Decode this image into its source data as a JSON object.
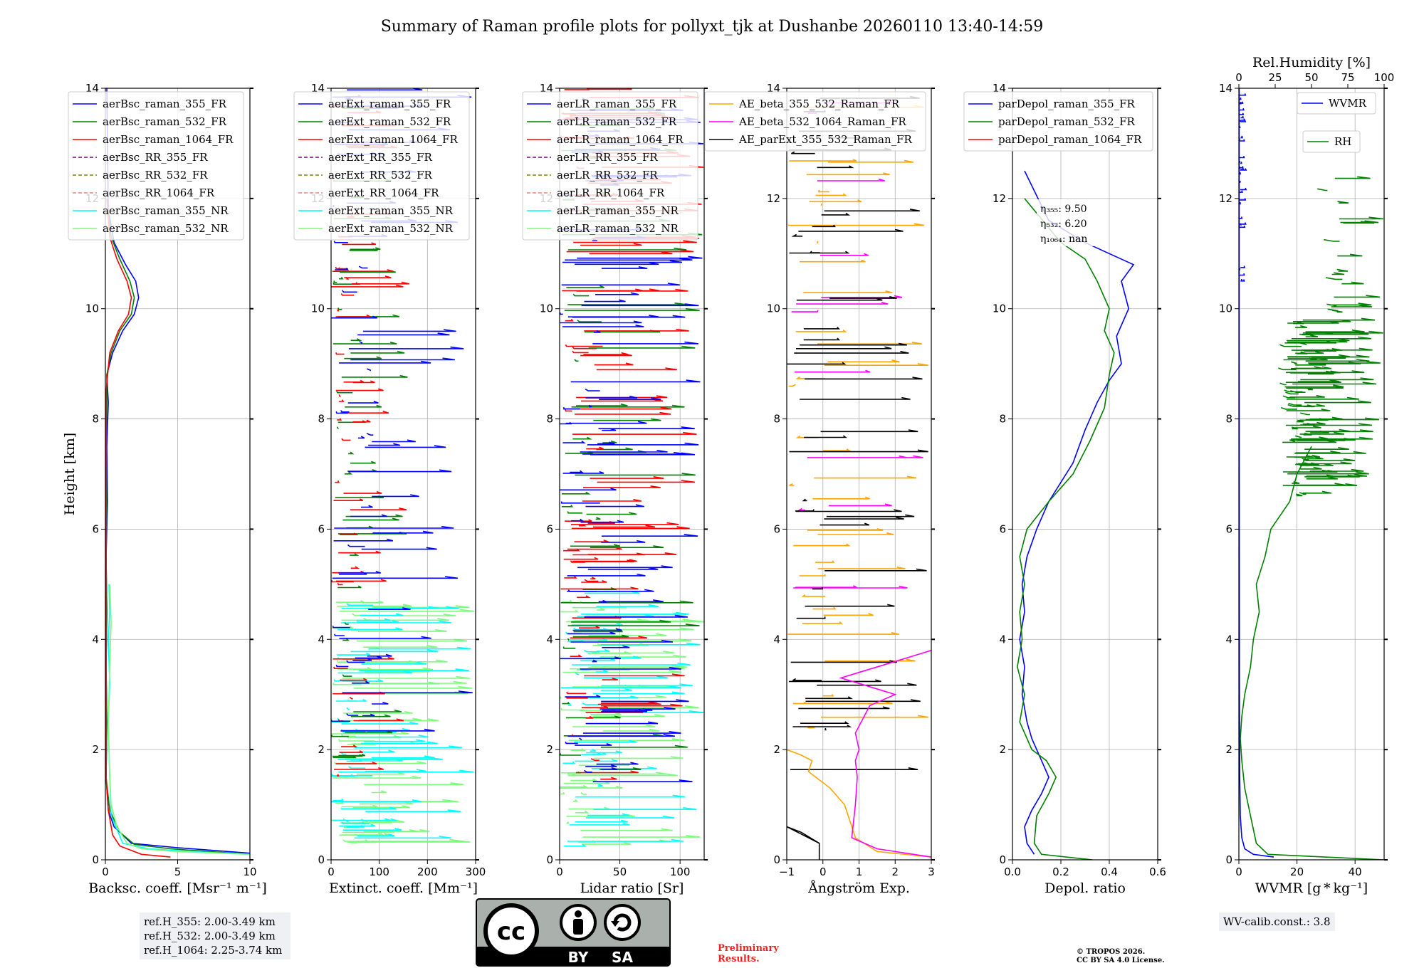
{
  "title": "Summary of Raman profile plots for pollyxt_tjk at Dushanbe 20260110 13:40-14:59",
  "colors": {
    "blue": "#0000ff",
    "green": "#008000",
    "red": "#ff0000",
    "purple": "#800080",
    "olive": "#808000",
    "salmon": "#fa8072",
    "cyan": "#00ffff",
    "lightgreen": "#7cfc7c",
    "orange": "#ffa500",
    "magenta": "#ff00ff",
    "black": "#000000"
  },
  "chart_data": [
    {
      "id": "bsc",
      "type": "line",
      "xlabel": "Backsc. coeff. [Msr$^{-1}$ m$^{-1}$]",
      "xlabel_text": "Backsc. coeff. [Msr⁻¹ m⁻¹]",
      "ylabel": "Height [km]",
      "xlim": [
        0,
        10
      ],
      "ylim": [
        0,
        14
      ],
      "xticks": [
        0,
        5,
        10
      ],
      "xtick_labels": [
        "0",
        "5",
        "10"
      ],
      "yticks": [
        0,
        2,
        4,
        6,
        8,
        10,
        12,
        14
      ],
      "ytick_labels": [
        "0",
        "2",
        "4",
        "6",
        "8",
        "10",
        "12",
        "14"
      ],
      "legend": [
        "aerBsc_raman_355_FR",
        "aerBsc_raman_532_FR",
        "aerBsc_raman_1064_FR",
        "aerBsc_RR_355_FR",
        "aerBsc_RR_532_FR",
        "aerBsc_RR_1064_FR",
        "aerBsc_raman_355_NR",
        "aerBsc_raman_532_NR"
      ],
      "legend_colors": [
        "#0000ff",
        "#008000",
        "#ff0000",
        "#800080",
        "#808000",
        "#fa8072",
        "#00ffff",
        "#7cfc7c"
      ],
      "legend_dashed": [
        false,
        false,
        false,
        true,
        true,
        true,
        false,
        false
      ],
      "series": [
        {
          "name": "aerBsc_raman_355_FR",
          "color": "#0000ff",
          "x": [
            10,
            5,
            1.8,
            0.6,
            0.2,
            0.05,
            0.1,
            0.05,
            0.1,
            0.05,
            0.15,
            0.1,
            0.2,
            0.1,
            0.5,
            1.2,
            2.0,
            2.3,
            2.1,
            1.4,
            0.6,
            0.2,
            0.1
          ],
          "y": [
            0.12,
            0.22,
            0.3,
            0.6,
            0.9,
            1.5,
            2.5,
            3.5,
            4.5,
            5.5,
            6.5,
            7.5,
            8.3,
            8.8,
            9.2,
            9.6,
            9.9,
            10.2,
            10.5,
            10.8,
            11.2,
            11.8,
            14
          ]
        },
        {
          "name": "aerBsc_raman_532_FR",
          "color": "#008000",
          "x": [
            10,
            4.5,
            2,
            1.0,
            0.3,
            0.05,
            0.1,
            0.05,
            0.1,
            0.05,
            0.1,
            0.05,
            0.1,
            0.1,
            0.4,
            1.0,
            1.8,
            2.0,
            1.7,
            1.0,
            0.4,
            0.1
          ],
          "y": [
            0.1,
            0.2,
            0.28,
            0.5,
            0.9,
            1.5,
            2.5,
            3.5,
            4.5,
            5.5,
            6.5,
            7.5,
            8.3,
            8.8,
            9.2,
            9.6,
            9.9,
            10.2,
            10.5,
            10.9,
            11.3,
            12
          ]
        },
        {
          "name": "aerBsc_raman_1064_FR",
          "color": "#ff0000",
          "x": [
            4.5,
            2.5,
            1.0,
            0.5,
            0.2,
            0.05,
            0.05,
            0.05,
            0.3,
            0.9,
            1.6,
            1.8,
            1.5,
            0.8,
            0.3,
            0.1
          ],
          "y": [
            0.05,
            0.1,
            0.25,
            0.45,
            0.9,
            1.5,
            4,
            8.5,
            9.2,
            9.6,
            9.9,
            10.2,
            10.5,
            10.9,
            11.3,
            12
          ]
        },
        {
          "name": "aerBsc_raman_355_NR",
          "color": "#00ffff",
          "x": [
            10,
            6,
            3,
            1.2,
            0.4,
            0.3,
            0.2,
            0.3,
            0.2,
            0.3,
            0.25
          ],
          "y": [
            0.1,
            0.15,
            0.2,
            0.3,
            0.8,
            1.5,
            2.5,
            3.2,
            4,
            4.5,
            5
          ]
        },
        {
          "name": "aerBsc_raman_532_NR",
          "color": "#7cfc7c",
          "x": [
            10,
            5,
            2.5,
            1.5,
            0.8,
            0.4,
            0.3,
            0.2,
            0.3,
            0.4,
            0.3
          ],
          "y": [
            0.1,
            0.15,
            0.2,
            0.3,
            0.6,
            1.0,
            1.5,
            2.5,
            3.5,
            4.3,
            5
          ]
        }
      ]
    },
    {
      "id": "ext",
      "type": "line",
      "xlabel_text": "Extinct. coeff. [Mm⁻¹]",
      "xlim": [
        0,
        300
      ],
      "ylim": [
        0,
        14
      ],
      "xticks": [
        0,
        100,
        200,
        300
      ],
      "xtick_labels": [
        "0",
        "100",
        "200",
        "300"
      ],
      "yticks": [
        0,
        2,
        4,
        6,
        8,
        10,
        12,
        14
      ],
      "ytick_labels": [
        "0",
        "2",
        "4",
        "6",
        "8",
        "10",
        "12",
        "14"
      ],
      "legend": [
        "aerExt_raman_355_FR",
        "aerExt_raman_532_FR",
        "aerExt_raman_1064_FR",
        "aerExt_RR_355_FR",
        "aerExt_RR_532_FR",
        "aerExt_RR_1064_FR",
        "aerExt_raman_355_NR",
        "aerExt_raman_532_NR"
      ],
      "legend_colors": [
        "#0000ff",
        "#008000",
        "#ff0000",
        "#800080",
        "#808000",
        "#fa8072",
        "#00ffff",
        "#7cfc7c"
      ],
      "legend_dashed": [
        false,
        false,
        false,
        true,
        true,
        true,
        false,
        false
      ],
      "noisy": [
        {
          "name": "aerExt_raman_532_NR",
          "color": "#7cfc7c",
          "ymin": 0.2,
          "ymax": 4.9,
          "xmin": 0,
          "xmax": 300,
          "n": 70,
          "seed": 3
        },
        {
          "name": "aerExt_raman_355_NR",
          "color": "#00ffff",
          "ymin": 0.3,
          "ymax": 4.9,
          "xmin": 0,
          "xmax": 300,
          "n": 55,
          "seed": 7
        },
        {
          "name": "aerExt_raman_532_FR",
          "color": "#008000",
          "ymin": 1.4,
          "ymax": 14,
          "xmin": 0,
          "xmax": 160,
          "n": 45,
          "seed": 11
        },
        {
          "name": "aerExt_raman_1064_FR",
          "color": "#ff0000",
          "ymin": 1.4,
          "ymax": 14,
          "xmin": 0,
          "xmax": 170,
          "n": 55,
          "seed": 13
        },
        {
          "name": "aerExt_raman_355_FR",
          "color": "#0000ff",
          "ymin": 1.3,
          "ymax": 14,
          "xmin": 0,
          "xmax": 300,
          "n": 65,
          "seed": 17
        }
      ]
    },
    {
      "id": "lr",
      "type": "line",
      "xlabel_text": "Lidar ratio [Sr]",
      "xlim": [
        0,
        120
      ],
      "ylim": [
        0,
        14
      ],
      "xticks": [
        0,
        50,
        100
      ],
      "xtick_labels": [
        "0",
        "50",
        "100"
      ],
      "yticks": [
        0,
        2,
        4,
        6,
        8,
        10,
        12,
        14
      ],
      "ytick_labels": [
        "0",
        "2",
        "4",
        "6",
        "8",
        "10",
        "12",
        "14"
      ],
      "legend": [
        "aerLR_raman_355_FR",
        "aerLR_raman_532_FR",
        "aerLR_raman_1064_FR",
        "aerLR_RR_355_FR",
        "aerLR_RR_532_FR",
        "aerLR_RR_1064_FR",
        "aerLR_raman_355_NR",
        "aerLR_raman_532_NR"
      ],
      "legend_colors": [
        "#0000ff",
        "#008000",
        "#ff0000",
        "#800080",
        "#808000",
        "#fa8072",
        "#00ffff",
        "#7cfc7c"
      ],
      "legend_dashed": [
        false,
        false,
        false,
        true,
        true,
        true,
        false,
        false
      ],
      "noisy": [
        {
          "name": "aerLR_raman_532_NR",
          "color": "#7cfc7c",
          "ymin": 0.2,
          "ymax": 4.9,
          "xmin": 0,
          "xmax": 120,
          "n": 60,
          "seed": 21
        },
        {
          "name": "aerLR_raman_355_NR",
          "color": "#00ffff",
          "ymin": 0.2,
          "ymax": 4.9,
          "xmin": 0,
          "xmax": 120,
          "n": 45,
          "seed": 23
        },
        {
          "name": "aerLR_raman_532_FR",
          "color": "#008000",
          "ymin": 1.4,
          "ymax": 14,
          "xmin": 0,
          "xmax": 120,
          "n": 50,
          "seed": 25
        },
        {
          "name": "aerLR_raman_1064_FR",
          "color": "#ff0000",
          "ymin": 1.4,
          "ymax": 14,
          "xmin": 0,
          "xmax": 120,
          "n": 90,
          "seed": 27
        },
        {
          "name": "aerLR_raman_355_FR",
          "color": "#0000ff",
          "ymin": 1.4,
          "ymax": 14,
          "xmin": 0,
          "xmax": 120,
          "n": 90,
          "seed": 29
        }
      ]
    },
    {
      "id": "ae",
      "type": "line",
      "xlabel_text": "Ångström Exp.",
      "xlim": [
        -1,
        3
      ],
      "ylim": [
        0,
        14
      ],
      "xticks": [
        -1,
        0,
        1,
        2,
        3
      ],
      "xtick_labels": [
        "−1",
        "0",
        "1",
        "2",
        "3"
      ],
      "yticks": [
        0,
        2,
        4,
        6,
        8,
        10,
        12,
        14
      ],
      "ytick_labels": [
        "0",
        "2",
        "4",
        "6",
        "8",
        "10",
        "12",
        "14"
      ],
      "legend": [
        "AE_beta_355_532_Raman_FR",
        "AE_beta_532_1064_Raman_FR",
        "AE_parExt_355_532_Raman_FR"
      ],
      "legend_colors": [
        "#ffa500",
        "#ff00ff",
        "#000000"
      ],
      "legend_dashed": [
        false,
        false,
        false
      ],
      "series": [
        {
          "name": "AE_beta_355_532_Raman_FR",
          "color": "#ffa500",
          "x": [
            3,
            1.5,
            0.9,
            0.6,
            0.2,
            -0.4,
            -0.3,
            -0.6,
            -1
          ],
          "y": [
            0.05,
            0.15,
            0.4,
            1.0,
            1.3,
            1.6,
            1.8,
            1.9,
            2.0
          ]
        },
        {
          "name": "AE_beta_532_1064_Raman_FR",
          "color": "#ff00ff",
          "x": [
            3,
            1.5,
            0.8,
            0.9,
            0.95,
            0.9,
            1.0,
            0.9,
            1.3,
            2.0,
            1.0,
            0.5,
            1.0,
            2.0,
            3.0
          ],
          "y": [
            0.05,
            0.2,
            0.4,
            1.0,
            1.5,
            1.8,
            2.0,
            2.3,
            2.8,
            3.0,
            3.2,
            3.3,
            3.4,
            3.6,
            3.8
          ]
        },
        {
          "name": "AE_parExt_355_532_Raman_FR",
          "color": "#000000",
          "x": [
            -0.1,
            -0.1,
            -1,
            -0.6,
            -0.1
          ],
          "y": [
            0,
            0.3,
            0.6,
            0.5,
            0.3
          ]
        }
      ],
      "noisy": [
        {
          "name": "AE_beta_355_532_Raman_FR",
          "color": "#ffa500",
          "ymin": 2.3,
          "ymax": 14,
          "xmin": -1,
          "xmax": 3,
          "n": 40,
          "seed": 31
        },
        {
          "name": "AE_beta_532_1064_Raman_FR",
          "color": "#ff00ff",
          "ymin": 4.5,
          "ymax": 14,
          "xmin": -1,
          "xmax": 3,
          "n": 14,
          "seed": 33
        },
        {
          "name": "AE_parExt_355_532_Raman_FR",
          "color": "#000000",
          "ymin": 1.4,
          "ymax": 14,
          "xmin": -1,
          "xmax": 3,
          "n": 48,
          "seed": 35
        }
      ]
    },
    {
      "id": "depol",
      "type": "line",
      "xlabel_text": "Depol. ratio",
      "xlim": [
        0,
        0.6
      ],
      "ylim": [
        0,
        14
      ],
      "xticks": [
        0,
        0.2,
        0.4,
        0.6
      ],
      "xtick_labels": [
        "0.0",
        "0.2",
        "0.4",
        "0.6"
      ],
      "yticks": [
        0,
        2,
        4,
        6,
        8,
        10,
        12,
        14
      ],
      "ytick_labels": [
        "0",
        "2",
        "4",
        "6",
        "8",
        "10",
        "12",
        "14"
      ],
      "legend": [
        "parDepol_raman_355_FR",
        "parDepol_raman_532_FR",
        "parDepol_raman_1064_FR"
      ],
      "legend_colors": [
        "#0000ff",
        "#008000",
        "#ff0000"
      ],
      "legend_dashed": [
        false,
        false,
        false
      ],
      "annotation": [
        "η₃₅₅: 9.50",
        "η₅₃₂: 6.20",
        "η₁₀₆₄: nan"
      ],
      "series": [
        {
          "name": "parDepol_raman_355_FR",
          "color": "#0000ff",
          "x": [
            0.09,
            0.06,
            0.05,
            0.08,
            0.12,
            0.15,
            0.12,
            0.1,
            0.08,
            0.06,
            0.04,
            0.05,
            0.03,
            0.05,
            0.04,
            0.06,
            0.1,
            0.15,
            0.25,
            0.3,
            0.35,
            0.4,
            0.45,
            0.43,
            0.48,
            0.45,
            0.5,
            0.4,
            0.3,
            0.15,
            0.05
          ],
          "y": [
            0.1,
            0.3,
            0.6,
            0.9,
            1.2,
            1.5,
            1.8,
            2.0,
            2.2,
            2.5,
            3.0,
            3.5,
            4.0,
            4.5,
            5.0,
            5.5,
            6.0,
            6.5,
            7.2,
            7.8,
            8.3,
            8.7,
            9.0,
            9.5,
            10.0,
            10.5,
            10.8,
            11.0,
            11.2,
            11.6,
            12.5
          ]
        },
        {
          "name": "parDepol_raman_532_FR",
          "color": "#008000",
          "x": [
            0.33,
            0.12,
            0.09,
            0.1,
            0.15,
            0.18,
            0.14,
            0.08,
            0.03,
            0.05,
            0.02,
            0.04,
            0.03,
            0.05,
            0.03,
            0.06,
            0.15,
            0.25,
            0.32,
            0.38,
            0.4,
            0.42,
            0.38,
            0.4,
            0.35,
            0.3,
            0.2,
            0.05
          ],
          "y": [
            0,
            0.1,
            0.3,
            0.8,
            1.2,
            1.5,
            1.8,
            2.0,
            2.5,
            3.0,
            3.5,
            4.0,
            4.5,
            5.0,
            5.5,
            6.0,
            6.5,
            7.0,
            7.6,
            8.2,
            8.8,
            9.2,
            9.6,
            10.0,
            10.5,
            10.9,
            11.2,
            12
          ]
        }
      ]
    },
    {
      "id": "wv",
      "type": "line",
      "xlabel_text": "WVMR [g * kg⁻¹]",
      "xlim": [
        0,
        50
      ],
      "ylim": [
        0,
        14
      ],
      "xticks": [
        0,
        20,
        40
      ],
      "xtick_labels": [
        "0",
        "20",
        "40"
      ],
      "top_xlabel": "Rel.Humidity [%]",
      "top_xlim": [
        0,
        100
      ],
      "top_xticks": [
        0,
        25,
        50,
        75,
        100
      ],
      "top_xtick_labels": [
        "0",
        "25",
        "50",
        "75",
        "100"
      ],
      "yticks": [
        0,
        2,
        4,
        6,
        8,
        10,
        12,
        14
      ],
      "ytick_labels": [
        "0",
        "2",
        "4",
        "6",
        "8",
        "10",
        "12",
        "14"
      ],
      "legend": [
        "WVMR",
        "RH"
      ],
      "legend_colors": [
        "#0000ff",
        "#008000"
      ],
      "series": [
        {
          "name": "WVMR",
          "color": "#0000ff",
          "x": [
            12,
            5,
            2,
            1,
            0.5,
            0.3,
            0.2,
            0.15,
            0.1,
            0.1
          ],
          "y": [
            0.05,
            0.1,
            0.2,
            0.4,
            0.8,
            1.5,
            3,
            6,
            10,
            14
          ]
        },
        {
          "name": "RH",
          "color": "#008000",
          "x": [
            100,
            20,
            12,
            8,
            4,
            2,
            1,
            2,
            4,
            8,
            10,
            14,
            12,
            18,
            22,
            35,
            40,
            50
          ],
          "y": [
            0,
            0.1,
            0.3,
            0.8,
            1.3,
            1.8,
            2.2,
            2.6,
            3.0,
            3.5,
            4.0,
            4.5,
            5.0,
            5.5,
            6.0,
            6.5,
            7.0,
            7.5
          ]
        }
      ],
      "noisy": [
        {
          "name": "RH",
          "color": "#008000",
          "ymin": 6.4,
          "ymax": 9.8,
          "xmin": 30,
          "xmax": 100,
          "n": 110,
          "seed": 41,
          "rel": true
        },
        {
          "name": "RH",
          "color": "#008000",
          "ymin": 9.8,
          "ymax": 12.6,
          "xmin": 60,
          "xmax": 100,
          "n": 18,
          "seed": 43,
          "rel": true
        },
        {
          "name": "WVMR",
          "color": "#0000ff",
          "ymin": 10.5,
          "ymax": 14,
          "xmin": 0,
          "xmax": 2.5,
          "n": 40,
          "seed": 45
        }
      ]
    }
  ],
  "ref_heights": [
    "ref.H_355: 2.00-3.49 km",
    "ref.H_532: 2.00-3.49 km",
    "ref.H_1064: 2.25-3.74 km"
  ],
  "wv_calib": "WV-calib.const.: 3.8",
  "license_logo": {
    "cc": "cc",
    "by": "BY",
    "sa": "SA"
  },
  "preliminary": [
    "Preliminary",
    "Results."
  ],
  "copyright": [
    "© TROPOS 2026.",
    "CC BY SA 4.0 License."
  ]
}
